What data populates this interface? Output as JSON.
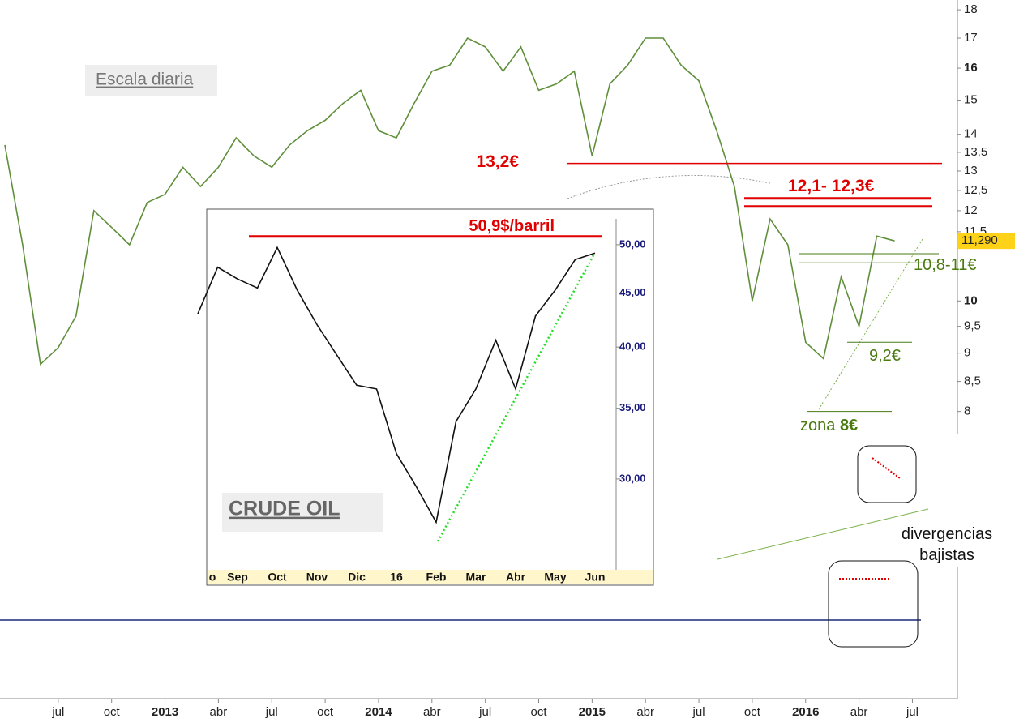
{
  "chart_data": [
    {
      "type": "line",
      "title": "Escala diaria",
      "log_scale": true,
      "color": "#5f8f3a",
      "categories": [
        null,
        null,
        null,
        "jul",
        null,
        null,
        "oct",
        null,
        null,
        "2013",
        null,
        null,
        "abr",
        null,
        null,
        "jul",
        null,
        null,
        "oct",
        null,
        null,
        "2014",
        null,
        null,
        "abr",
        null,
        null,
        "jul",
        null,
        null,
        "oct",
        null,
        null,
        "2015",
        null,
        null,
        "abr",
        null,
        null,
        "jul",
        null,
        null,
        "oct",
        null,
        null,
        "2016",
        null,
        null,
        "abr",
        null,
        null,
        "jul"
      ],
      "values": [
        13.7,
        11.2,
        8.8,
        9.1,
        9.7,
        12.0,
        11.6,
        11.2,
        12.2,
        12.4,
        13.1,
        12.6,
        13.1,
        13.9,
        13.4,
        13.1,
        13.7,
        14.1,
        14.4,
        14.9,
        15.3,
        14.1,
        13.9,
        14.9,
        15.9,
        16.1,
        17.0,
        16.7,
        15.9,
        16.7,
        15.3,
        15.5,
        15.9,
        13.4,
        15.5,
        16.1,
        17.0,
        17.0,
        16.1,
        15.6,
        14.1,
        12.6,
        10.0,
        11.8,
        11.2,
        9.2,
        8.9,
        10.5,
        9.5,
        11.4,
        11.29,
        null
      ],
      "ylim": [
        7.65,
        18.36
      ],
      "yticks": [
        8,
        {
          "value": 8.5,
          "label": "8,5"
        },
        9,
        {
          "value": 9.5,
          "label": "9,5"
        },
        10,
        {
          "value": 11.5,
          "label": "11,5"
        },
        12,
        {
          "value": 12.5,
          "label": "12,5"
        },
        13,
        {
          "value": 13.5,
          "label": "13,5"
        },
        14,
        15,
        16,
        17,
        18
      ],
      "last_price": {
        "value": 11.29,
        "label": "11,290"
      },
      "levels": [
        {
          "values": [
            13.2
          ],
          "label": "13,2€",
          "color": "#e00000"
        },
        {
          "values": [
            12.1,
            12.3
          ],
          "label": "12,1- 12,3€",
          "color": "#e00000"
        },
        {
          "values": [
            10.8,
            11
          ],
          "label": "10,8-11€",
          "color": "#4a7a10"
        },
        {
          "values": [
            9.2
          ],
          "label": "9,2€",
          "color": "#4a7a10"
        },
        {
          "values": [
            8
          ],
          "label": "zona",
          "label_bold": "8€",
          "color": "#4a7a10"
        }
      ],
      "annotation": "divergencias bajistas"
    },
    {
      "type": "line",
      "title": "CRUDE OIL",
      "log_scale": true,
      "color": "#111111",
      "categories": [
        "o",
        null,
        "Sep",
        null,
        "Oct",
        null,
        "Nov",
        null,
        "Dic",
        null,
        "16",
        null,
        "Feb",
        null,
        "Mar",
        null,
        "Abr",
        null,
        "May",
        null,
        "Jun"
      ],
      "values": [
        43,
        47.6,
        46.4,
        45.5,
        49.7,
        45.3,
        42,
        39.3,
        36.8,
        36.5,
        31.7,
        29.5,
        27.3,
        34,
        36.5,
        40.6,
        36.5,
        42.8,
        45.3,
        48.4,
        49.1
      ],
      "ylim": [
        24.87,
        52.9
      ],
      "yticks": [
        {
          "value": 30,
          "label": "30,00"
        },
        {
          "value": 35,
          "label": "35,00"
        },
        {
          "value": 40,
          "label": "40,00"
        },
        {
          "value": 45,
          "label": "45,00"
        },
        {
          "value": 50,
          "label": "50,00"
        }
      ],
      "levels": [
        {
          "values": [
            50.9
          ],
          "label": "50,9$/barril",
          "color": "#e00000"
        }
      ]
    }
  ]
}
